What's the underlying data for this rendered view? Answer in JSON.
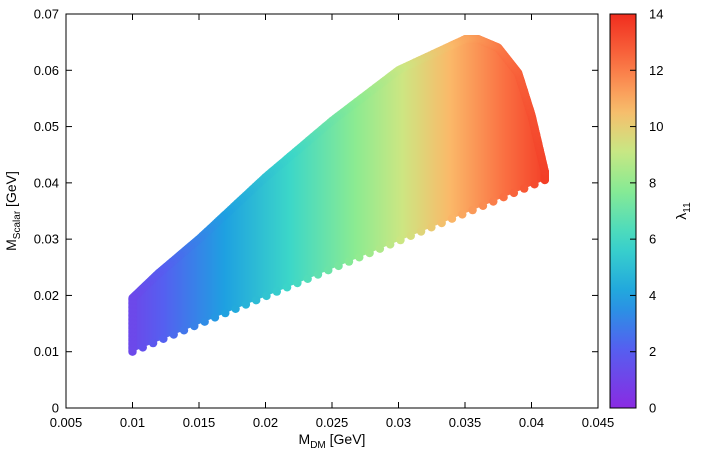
{
  "chart_data": {
    "type": "scatter",
    "title": "",
    "xlabel": "M",
    "xlabel_sub": "DM",
    "xlabel_unit": " [GeV]",
    "ylabel": "M",
    "ylabel_sub": "Scalar",
    "ylabel_unit": " [GeV]",
    "xlim": [
      0.005,
      0.045
    ],
    "ylim": [
      0,
      0.07
    ],
    "xticks": [
      "0.005",
      "0.01",
      "0.015",
      "0.02",
      "0.025",
      "0.03",
      "0.035",
      "0.04",
      "0.045"
    ],
    "yticks": [
      "0",
      "0.01",
      "0.02",
      "0.03",
      "0.04",
      "0.05",
      "0.06",
      "0.07"
    ],
    "grid": false,
    "region": {
      "description_x": "M_DM",
      "outline": [
        [
          0.01,
          0.01
        ],
        [
          0.041,
          0.0405
        ],
        [
          0.041,
          0.042
        ],
        [
          0.04,
          0.052
        ],
        [
          0.039,
          0.0595
        ],
        [
          0.0375,
          0.064
        ],
        [
          0.036,
          0.0655
        ],
        [
          0.035,
          0.0655
        ],
        [
          0.03,
          0.06
        ],
        [
          0.025,
          0.051
        ],
        [
          0.02,
          0.041
        ],
        [
          0.015,
          0.03
        ],
        [
          0.012,
          0.024
        ],
        [
          0.01,
          0.0195
        ]
      ]
    },
    "colorbar": {
      "label": "λ",
      "label_sub": "11",
      "min": 0,
      "max": 14,
      "ticks": [
        "0",
        "2",
        "4",
        "6",
        "8",
        "10",
        "12",
        "14"
      ],
      "colormap": "rainbow",
      "color_model": {
        "lambda_at_x_min": 1.0,
        "lambda_at_x_max": 13.5,
        "x_min": 0.0095,
        "x_max": 0.041
      }
    }
  }
}
